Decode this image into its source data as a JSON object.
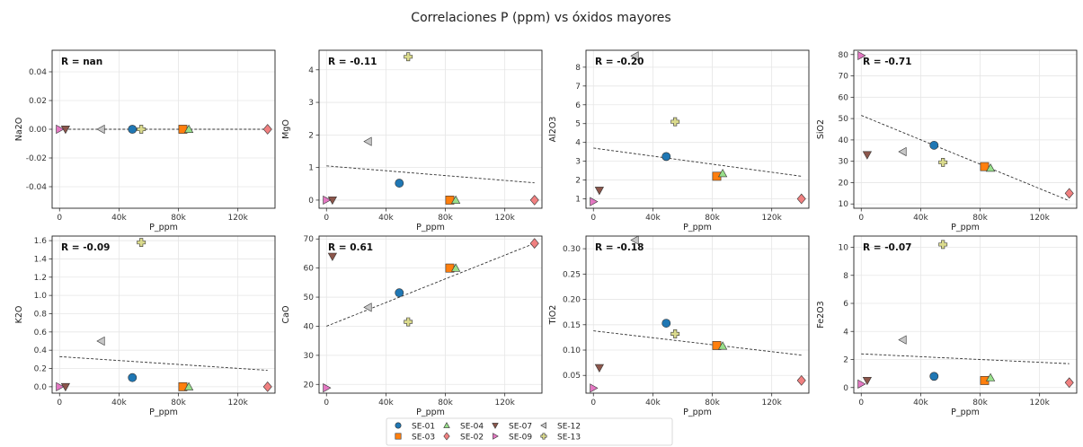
{
  "figure": {
    "title": "Correlaciones P (ppm) vs óxidos mayores"
  },
  "series_styles": [
    {
      "name": "SE-01",
      "color": "#1f77b4",
      "marker": "circle"
    },
    {
      "name": "SE-03",
      "color": "#ff7f0e",
      "marker": "square"
    },
    {
      "name": "SE-04",
      "color": "#98df8a",
      "marker": "triangle-up"
    },
    {
      "name": "SE-02",
      "color": "#f08080",
      "marker": "diamond"
    },
    {
      "name": "SE-07",
      "color": "#8c564b",
      "marker": "triangle-down"
    },
    {
      "name": "SE-09",
      "color": "#e377c2",
      "marker": "triangle-right"
    },
    {
      "name": "SE-12",
      "color": "#c7c7c7",
      "marker": "triangle-left"
    },
    {
      "name": "SE-13",
      "color": "#dbdb8d",
      "marker": "plus"
    }
  ],
  "legend": {
    "placement": "bottom-center",
    "entries": [
      "SE-01",
      "SE-03",
      "SE-04",
      "SE-02",
      "SE-07",
      "SE-09",
      "SE-12",
      "SE-13"
    ]
  },
  "chart_data": [
    {
      "type": "scatter",
      "xlabel": "P_ppm",
      "ylabel": "Na2O",
      "annotation": "R = nan",
      "xlim": [
        -5000,
        145000
      ],
      "ylim": [
        -0.055,
        0.055
      ],
      "xticks": [
        "0",
        "40k",
        "80k",
        "120k"
      ],
      "yticks": [
        "-0.04",
        "-0.02",
        "0.00",
        "0.02",
        "0.04"
      ],
      "ytick_values": [
        -0.04,
        -0.02,
        0,
        0.02,
        0.04
      ],
      "grid": true,
      "trend": [
        [
          0,
          0.0
        ],
        [
          140000,
          0.0
        ]
      ],
      "points": [
        {
          "series": "SE-01",
          "x": 49000,
          "y": 0.0
        },
        {
          "series": "SE-03",
          "x": 83000,
          "y": 0.0
        },
        {
          "series": "SE-04",
          "x": 87000,
          "y": 0.0
        },
        {
          "series": "SE-02",
          "x": 140000,
          "y": 0.0
        },
        {
          "series": "SE-07",
          "x": 4000,
          "y": 0.0
        },
        {
          "series": "SE-09",
          "x": 0,
          "y": 0.0
        },
        {
          "series": "SE-12",
          "x": 28000,
          "y": 0.0
        },
        {
          "series": "SE-13",
          "x": 55000,
          "y": 0.0
        }
      ]
    },
    {
      "type": "scatter",
      "xlabel": "P_ppm",
      "ylabel": "MgO",
      "annotation": "R = -0.11",
      "xlim": [
        -5000,
        145000
      ],
      "ylim": [
        -0.25,
        4.6
      ],
      "xticks": [
        "0",
        "40k",
        "80k",
        "120k"
      ],
      "yticks": [
        "0",
        "1",
        "2",
        "3",
        "4"
      ],
      "ytick_values": [
        0,
        1,
        2,
        3,
        4
      ],
      "grid": true,
      "trend": [
        [
          0,
          1.05
        ],
        [
          140000,
          0.53
        ]
      ],
      "points": [
        {
          "series": "SE-01",
          "x": 49000,
          "y": 0.52
        },
        {
          "series": "SE-03",
          "x": 83000,
          "y": 0.0
        },
        {
          "series": "SE-04",
          "x": 87000,
          "y": 0.0
        },
        {
          "series": "SE-02",
          "x": 140000,
          "y": 0.0
        },
        {
          "series": "SE-07",
          "x": 4000,
          "y": 0.0
        },
        {
          "series": "SE-09",
          "x": 0,
          "y": 0.0
        },
        {
          "series": "SE-12",
          "x": 28000,
          "y": 1.8
        },
        {
          "series": "SE-13",
          "x": 55000,
          "y": 4.4
        }
      ]
    },
    {
      "type": "scatter",
      "xlabel": "P_ppm",
      "ylabel": "Al2O3",
      "annotation": "R = -0.20",
      "xlim": [
        -5000,
        145000
      ],
      "ylim": [
        0.5,
        8.9
      ],
      "xticks": [
        "0",
        "40k",
        "80k",
        "120k"
      ],
      "yticks": [
        "1",
        "2",
        "3",
        "4",
        "5",
        "6",
        "7",
        "8"
      ],
      "ytick_values": [
        1,
        2,
        3,
        4,
        5,
        6,
        7,
        8
      ],
      "grid": true,
      "trend": [
        [
          0,
          3.7
        ],
        [
          140000,
          2.2
        ]
      ],
      "points": [
        {
          "series": "SE-01",
          "x": 49000,
          "y": 3.25
        },
        {
          "series": "SE-03",
          "x": 83000,
          "y": 2.2
        },
        {
          "series": "SE-04",
          "x": 87000,
          "y": 2.35
        },
        {
          "series": "SE-02",
          "x": 140000,
          "y": 1.0
        },
        {
          "series": "SE-07",
          "x": 4000,
          "y": 1.45
        },
        {
          "series": "SE-09",
          "x": 0,
          "y": 0.85
        },
        {
          "series": "SE-12",
          "x": 28000,
          "y": 8.6
        },
        {
          "series": "SE-13",
          "x": 55000,
          "y": 5.1
        }
      ]
    },
    {
      "type": "scatter",
      "xlabel": "P_ppm",
      "ylabel": "SiO2",
      "annotation": "R = -0.71",
      "xlim": [
        -5000,
        145000
      ],
      "ylim": [
        8,
        82
      ],
      "xticks": [
        "0",
        "40k",
        "80k",
        "120k"
      ],
      "yticks": [
        "10",
        "20",
        "30",
        "40",
        "50",
        "60",
        "70",
        "80"
      ],
      "ytick_values": [
        10,
        20,
        30,
        40,
        50,
        60,
        70,
        80
      ],
      "grid": true,
      "trend": [
        [
          0,
          51.5
        ],
        [
          140000,
          11.5
        ]
      ],
      "points": [
        {
          "series": "SE-01",
          "x": 49000,
          "y": 37.5
        },
        {
          "series": "SE-03",
          "x": 83000,
          "y": 27.5
        },
        {
          "series": "SE-04",
          "x": 87000,
          "y": 26.8
        },
        {
          "series": "SE-02",
          "x": 140000,
          "y": 15.0
        },
        {
          "series": "SE-07",
          "x": 4000,
          "y": 33.0
        },
        {
          "series": "SE-09",
          "x": 0,
          "y": 79.5
        },
        {
          "series": "SE-12",
          "x": 28000,
          "y": 34.5
        },
        {
          "series": "SE-13",
          "x": 55000,
          "y": 29.5
        }
      ]
    },
    {
      "type": "scatter",
      "xlabel": "P_ppm",
      "ylabel": "K2O",
      "annotation": "R = -0.09",
      "xlim": [
        -5000,
        145000
      ],
      "ylim": [
        -0.07,
        1.65
      ],
      "xticks": [
        "0",
        "40k",
        "80k",
        "120k"
      ],
      "yticks": [
        "0.0",
        "0.2",
        "0.4",
        "0.6",
        "0.8",
        "1.0",
        "1.2",
        "1.4",
        "1.6"
      ],
      "ytick_values": [
        0,
        0.2,
        0.4,
        0.6,
        0.8,
        1.0,
        1.2,
        1.4,
        1.6
      ],
      "grid": true,
      "trend": [
        [
          0,
          0.33
        ],
        [
          140000,
          0.18
        ]
      ],
      "points": [
        {
          "series": "SE-01",
          "x": 49000,
          "y": 0.1
        },
        {
          "series": "SE-03",
          "x": 83000,
          "y": 0.0
        },
        {
          "series": "SE-04",
          "x": 87000,
          "y": 0.0
        },
        {
          "series": "SE-02",
          "x": 140000,
          "y": 0.0
        },
        {
          "series": "SE-07",
          "x": 4000,
          "y": 0.0
        },
        {
          "series": "SE-09",
          "x": 0,
          "y": 0.0
        },
        {
          "series": "SE-12",
          "x": 28000,
          "y": 0.5
        },
        {
          "series": "SE-13",
          "x": 55000,
          "y": 1.58
        }
      ]
    },
    {
      "type": "scatter",
      "xlabel": "P_ppm",
      "ylabel": "CaO",
      "annotation": "R = 0.61",
      "xlim": [
        -5000,
        145000
      ],
      "ylim": [
        17,
        71
      ],
      "xticks": [
        "0",
        "40k",
        "80k",
        "120k"
      ],
      "yticks": [
        "20",
        "30",
        "40",
        "50",
        "60",
        "70"
      ],
      "ytick_values": [
        20,
        30,
        40,
        50,
        60,
        70
      ],
      "grid": true,
      "trend": [
        [
          0,
          40.0
        ],
        [
          140000,
          68.5
        ]
      ],
      "points": [
        {
          "series": "SE-01",
          "x": 49000,
          "y": 51.5
        },
        {
          "series": "SE-03",
          "x": 83000,
          "y": 60.0
        },
        {
          "series": "SE-04",
          "x": 87000,
          "y": 60.0
        },
        {
          "series": "SE-02",
          "x": 140000,
          "y": 68.5
        },
        {
          "series": "SE-07",
          "x": 4000,
          "y": 64.0
        },
        {
          "series": "SE-09",
          "x": 0,
          "y": 18.8
        },
        {
          "series": "SE-12",
          "x": 28000,
          "y": 46.5
        },
        {
          "series": "SE-13",
          "x": 55000,
          "y": 41.5
        }
      ]
    },
    {
      "type": "scatter",
      "xlabel": "P_ppm",
      "ylabel": "TiO2",
      "annotation": "R = -0.18",
      "xlim": [
        -5000,
        145000
      ],
      "ylim": [
        0.015,
        0.325
      ],
      "xticks": [
        "0",
        "40k",
        "80k",
        "120k"
      ],
      "yticks": [
        "0.05",
        "0.10",
        "0.15",
        "0.20",
        "0.25",
        "0.30"
      ],
      "ytick_values": [
        0.05,
        0.1,
        0.15,
        0.2,
        0.25,
        0.3
      ],
      "grid": true,
      "trend": [
        [
          0,
          0.138
        ],
        [
          140000,
          0.09
        ]
      ],
      "points": [
        {
          "series": "SE-01",
          "x": 49000,
          "y": 0.153
        },
        {
          "series": "SE-03",
          "x": 83000,
          "y": 0.109
        },
        {
          "series": "SE-04",
          "x": 87000,
          "y": 0.108
        },
        {
          "series": "SE-02",
          "x": 140000,
          "y": 0.04
        },
        {
          "series": "SE-07",
          "x": 4000,
          "y": 0.065
        },
        {
          "series": "SE-09",
          "x": 0,
          "y": 0.025
        },
        {
          "series": "SE-12",
          "x": 28000,
          "y": 0.317
        },
        {
          "series": "SE-13",
          "x": 55000,
          "y": 0.132
        }
      ]
    },
    {
      "type": "scatter",
      "xlabel": "P_ppm",
      "ylabel": "Fe2O3",
      "annotation": "R = -0.07",
      "xlim": [
        -5000,
        145000
      ],
      "ylim": [
        -0.4,
        10.8
      ],
      "xticks": [
        "0",
        "40k",
        "80k",
        "120k"
      ],
      "yticks": [
        "0",
        "2",
        "4",
        "6",
        "8",
        "10"
      ],
      "ytick_values": [
        0,
        2,
        4,
        6,
        8,
        10
      ],
      "grid": true,
      "trend": [
        [
          0,
          2.4
        ],
        [
          140000,
          1.7
        ]
      ],
      "points": [
        {
          "series": "SE-01",
          "x": 49000,
          "y": 0.8
        },
        {
          "series": "SE-03",
          "x": 83000,
          "y": 0.5
        },
        {
          "series": "SE-04",
          "x": 87000,
          "y": 0.7
        },
        {
          "series": "SE-02",
          "x": 140000,
          "y": 0.35
        },
        {
          "series": "SE-07",
          "x": 4000,
          "y": 0.5
        },
        {
          "series": "SE-09",
          "x": 0,
          "y": 0.25
        },
        {
          "series": "SE-12",
          "x": 28000,
          "y": 3.4
        },
        {
          "series": "SE-13",
          "x": 55000,
          "y": 10.2
        }
      ]
    }
  ]
}
